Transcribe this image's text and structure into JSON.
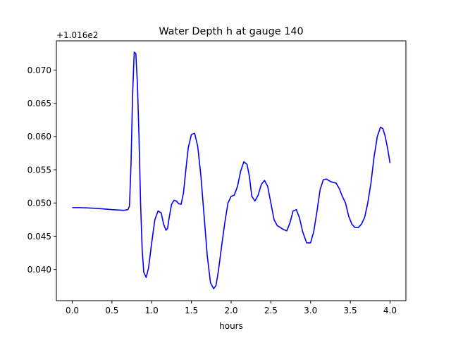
{
  "chart_data": {
    "type": "line",
    "title": "Water Depth h at gauge 140",
    "xlabel": "hours",
    "ylabel": "",
    "offset_label": "+1.016e2",
    "xlim": [
      -0.2,
      4.2
    ],
    "ylim": [
      0.0353,
      0.0744
    ],
    "x_ticks": [
      {
        "value": 0.0,
        "label": "0.0"
      },
      {
        "value": 0.5,
        "label": "0.5"
      },
      {
        "value": 1.0,
        "label": "1.0"
      },
      {
        "value": 1.5,
        "label": "1.5"
      },
      {
        "value": 2.0,
        "label": "2.0"
      },
      {
        "value": 2.5,
        "label": "2.5"
      },
      {
        "value": 3.0,
        "label": "3.0"
      },
      {
        "value": 3.5,
        "label": "3.5"
      },
      {
        "value": 4.0,
        "label": "4.0"
      }
    ],
    "y_ticks": [
      {
        "value": 0.04,
        "label": "0.040"
      },
      {
        "value": 0.045,
        "label": "0.045"
      },
      {
        "value": 0.05,
        "label": "0.050"
      },
      {
        "value": 0.055,
        "label": "0.055"
      },
      {
        "value": 0.06,
        "label": "0.060"
      },
      {
        "value": 0.065,
        "label": "0.065"
      },
      {
        "value": 0.07,
        "label": "0.070"
      }
    ],
    "grid": false,
    "series": [
      {
        "color": "#0000ff",
        "x": [
          0.0,
          0.1,
          0.3,
          0.5,
          0.65,
          0.7,
          0.72,
          0.74,
          0.76,
          0.78,
          0.8,
          0.82,
          0.84,
          0.86,
          0.88,
          0.9,
          0.93,
          0.96,
          1.0,
          1.04,
          1.08,
          1.12,
          1.15,
          1.18,
          1.2,
          1.22,
          1.25,
          1.28,
          1.31,
          1.34,
          1.37,
          1.4,
          1.43,
          1.46,
          1.5,
          1.54,
          1.58,
          1.62,
          1.66,
          1.7,
          1.74,
          1.78,
          1.81,
          1.84,
          1.88,
          1.92,
          1.96,
          2.0,
          2.04,
          2.08,
          2.12,
          2.16,
          2.2,
          2.23,
          2.26,
          2.3,
          2.34,
          2.38,
          2.42,
          2.46,
          2.5,
          2.54,
          2.58,
          2.62,
          2.66,
          2.7,
          2.74,
          2.78,
          2.82,
          2.86,
          2.9,
          2.95,
          3.0,
          3.04,
          3.08,
          3.12,
          3.16,
          3.2,
          3.24,
          3.28,
          3.32,
          3.36,
          3.4,
          3.44,
          3.48,
          3.52,
          3.56,
          3.6,
          3.64,
          3.68,
          3.72,
          3.76,
          3.8,
          3.84,
          3.88,
          3.91,
          3.94,
          3.97,
          4.0
        ],
        "y": [
          0.0493,
          0.0493,
          0.0492,
          0.049,
          0.0489,
          0.049,
          0.0495,
          0.056,
          0.0665,
          0.0727,
          0.0725,
          0.068,
          0.06,
          0.05,
          0.043,
          0.0396,
          0.0388,
          0.0402,
          0.044,
          0.0475,
          0.0488,
          0.0485,
          0.0468,
          0.0459,
          0.0462,
          0.0478,
          0.0498,
          0.0504,
          0.0503,
          0.0499,
          0.0498,
          0.0515,
          0.055,
          0.0583,
          0.0603,
          0.0605,
          0.0585,
          0.054,
          0.048,
          0.042,
          0.038,
          0.0371,
          0.0376,
          0.0398,
          0.0435,
          0.047,
          0.05,
          0.051,
          0.0512,
          0.0525,
          0.0548,
          0.0562,
          0.0558,
          0.054,
          0.051,
          0.0503,
          0.0512,
          0.0528,
          0.0534,
          0.0525,
          0.05,
          0.0475,
          0.0466,
          0.0463,
          0.046,
          0.0458,
          0.047,
          0.0488,
          0.049,
          0.0478,
          0.0457,
          0.044,
          0.044,
          0.0457,
          0.0487,
          0.052,
          0.0535,
          0.0536,
          0.0533,
          0.0531,
          0.053,
          0.0522,
          0.051,
          0.05,
          0.048,
          0.0468,
          0.0463,
          0.0463,
          0.0468,
          0.0478,
          0.05,
          0.053,
          0.057,
          0.06,
          0.0614,
          0.0612,
          0.06,
          0.0582,
          0.056
        ]
      }
    ]
  }
}
